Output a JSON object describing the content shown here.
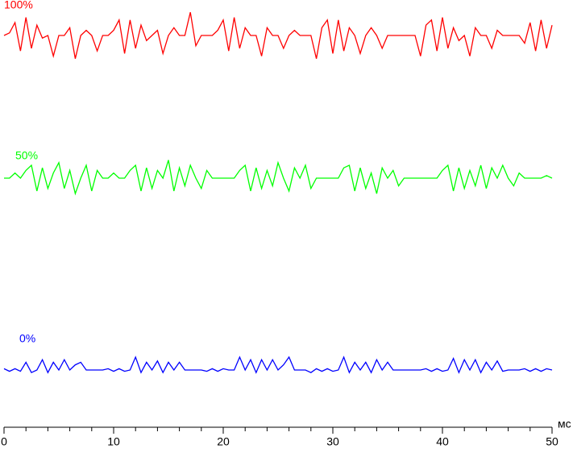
{
  "chart_data": {
    "type": "line",
    "x_label": "мс",
    "xlim": [
      0,
      50
    ],
    "xticks": [
      0,
      10,
      20,
      30,
      40,
      50
    ],
    "ylim": [
      -1,
      1
    ],
    "x": [
      0,
      0.5,
      1,
      1.5,
      2,
      2.5,
      3,
      3.5,
      4,
      4.5,
      5,
      5.5,
      6,
      6.5,
      7,
      7.5,
      8,
      8.5,
      9,
      9.5,
      10,
      10.5,
      11,
      11.5,
      12,
      12.5,
      13,
      13.5,
      14,
      14.5,
      15,
      15.5,
      16,
      16.5,
      17,
      17.5,
      18,
      18.5,
      19,
      19.5,
      20,
      20.5,
      21,
      21.5,
      22,
      22.5,
      23,
      23.5,
      24,
      24.5,
      25,
      25.5,
      26,
      26.5,
      27,
      27.5,
      28,
      28.5,
      29,
      29.5,
      30,
      30.5,
      31,
      31.5,
      32,
      32.5,
      33,
      33.5,
      34,
      34.5,
      35,
      35.5,
      36,
      36.5,
      37,
      37.5,
      38,
      38.5,
      39,
      39.5,
      40,
      40.5,
      41,
      41.5,
      42,
      42.5,
      43,
      43.5,
      44,
      44.5,
      45,
      45.5,
      46,
      46.5,
      47,
      47.5,
      48,
      48.5,
      49,
      49.5,
      50
    ],
    "series": [
      {
        "name": "100%",
        "color": "#ff0000",
        "values": [
          0,
          0.1,
          0.5,
          -0.6,
          0.7,
          -0.5,
          0.4,
          -0.1,
          0,
          -0.8,
          0,
          0,
          0.3,
          -0.9,
          0,
          0.2,
          0,
          -0.6,
          0,
          0,
          0.2,
          0.6,
          -0.7,
          0.6,
          -0.5,
          0.4,
          -0.2,
          0,
          0.2,
          -0.7,
          0,
          0.3,
          0,
          0,
          0.9,
          -0.4,
          0,
          0,
          0,
          0.2,
          0.6,
          -0.6,
          0.7,
          -0.5,
          0.3,
          0,
          0,
          -0.8,
          0.3,
          0,
          0,
          -0.5,
          0,
          0.2,
          0,
          0,
          0,
          -0.9,
          0.3,
          0.6,
          -0.7,
          0.6,
          -0.6,
          0.3,
          0,
          -0.7,
          0,
          0.3,
          0,
          -0.5,
          0,
          0,
          0,
          0,
          0,
          0,
          -0.8,
          0.4,
          0.6,
          -0.6,
          0.7,
          -0.5,
          0.3,
          -0.2,
          0,
          -0.8,
          0.3,
          0,
          0,
          -0.5,
          0.2,
          0,
          0,
          0,
          0,
          -0.3,
          0.5,
          -0.6,
          0.6,
          -0.5,
          0.4
        ]
      },
      {
        "name": "50%",
        "color": "#00ff00",
        "values": [
          0,
          0,
          0.2,
          0,
          0.3,
          0.5,
          -0.5,
          0.4,
          -0.4,
          0.2,
          0.6,
          -0.4,
          0.3,
          -0.6,
          0,
          0.5,
          -0.5,
          0.3,
          0,
          0,
          0.2,
          0,
          0,
          0.3,
          0.5,
          -0.5,
          0.4,
          -0.4,
          0.3,
          0,
          0.7,
          -0.5,
          0.4,
          -0.3,
          0.5,
          0,
          -0.4,
          0.3,
          0,
          0,
          0,
          0,
          0,
          0.3,
          0.5,
          -0.5,
          0.4,
          -0.4,
          0.3,
          -0.3,
          0.6,
          0,
          -0.5,
          0.4,
          0,
          0.5,
          -0.4,
          0,
          0,
          0,
          0,
          0,
          0.4,
          0.5,
          -0.5,
          0.4,
          -0.4,
          0.2,
          -0.6,
          0.4,
          0,
          0.3,
          -0.3,
          0,
          0,
          0,
          0,
          0,
          0,
          0,
          0.3,
          0.5,
          -0.5,
          0.4,
          -0.4,
          0.3,
          -0.3,
          0.5,
          -0.4,
          0.4,
          0,
          0.5,
          0,
          -0.3,
          0.2,
          0,
          0,
          0,
          0,
          0.1,
          0
        ]
      },
      {
        "name": "0%",
        "color": "#0000ff",
        "values": [
          0.05,
          -0.05,
          0.05,
          -0.05,
          0.3,
          -0.1,
          0,
          0.4,
          -0.1,
          0.3,
          0,
          0.4,
          0,
          0.2,
          0.3,
          0,
          0,
          0,
          0,
          0.05,
          -0.05,
          0.05,
          -0.05,
          0,
          0.5,
          -0.1,
          0.3,
          0,
          0.35,
          -0.1,
          0.3,
          0,
          0.3,
          0,
          0,
          0,
          0,
          -0.05,
          0.05,
          -0.05,
          0.05,
          0,
          0,
          0.5,
          0,
          0.4,
          -0.1,
          0.4,
          0,
          0.4,
          0,
          0.2,
          0.5,
          0,
          0,
          0,
          -0.1,
          0.05,
          -0.05,
          0.05,
          -0.05,
          0,
          0.5,
          -0.1,
          0.3,
          0,
          0.3,
          -0.1,
          0.4,
          0,
          0.3,
          0,
          0,
          0,
          0,
          0,
          0,
          0.05,
          -0.05,
          0.05,
          -0.05,
          0,
          0.45,
          -0.1,
          0.4,
          0,
          0.4,
          -0.1,
          0.3,
          0,
          0.35,
          -0.05,
          0,
          0,
          0,
          0.05,
          -0.05,
          0.05,
          -0.05,
          0.05,
          0
        ]
      }
    ]
  }
}
